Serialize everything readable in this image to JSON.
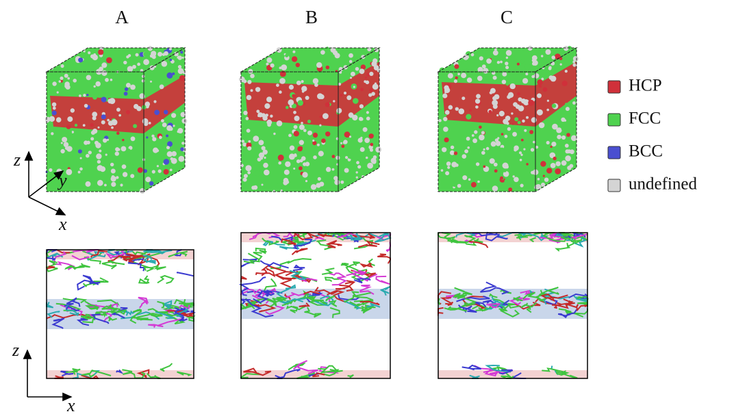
{
  "panels": [
    {
      "label": "A"
    },
    {
      "label": "B"
    },
    {
      "label": "C"
    }
  ],
  "legend": [
    {
      "name": "HCP",
      "color": "#d0303a"
    },
    {
      "name": "FCC",
      "color": "#4fd24f"
    },
    {
      "name": "BCC",
      "color": "#4a4fd0"
    },
    {
      "name": "undefined",
      "color": "#d4d4d4"
    }
  ],
  "axes": {
    "top": {
      "z": "z",
      "y": "y",
      "x": "x"
    },
    "bottom": {
      "z": "z",
      "x": "x"
    }
  }
}
